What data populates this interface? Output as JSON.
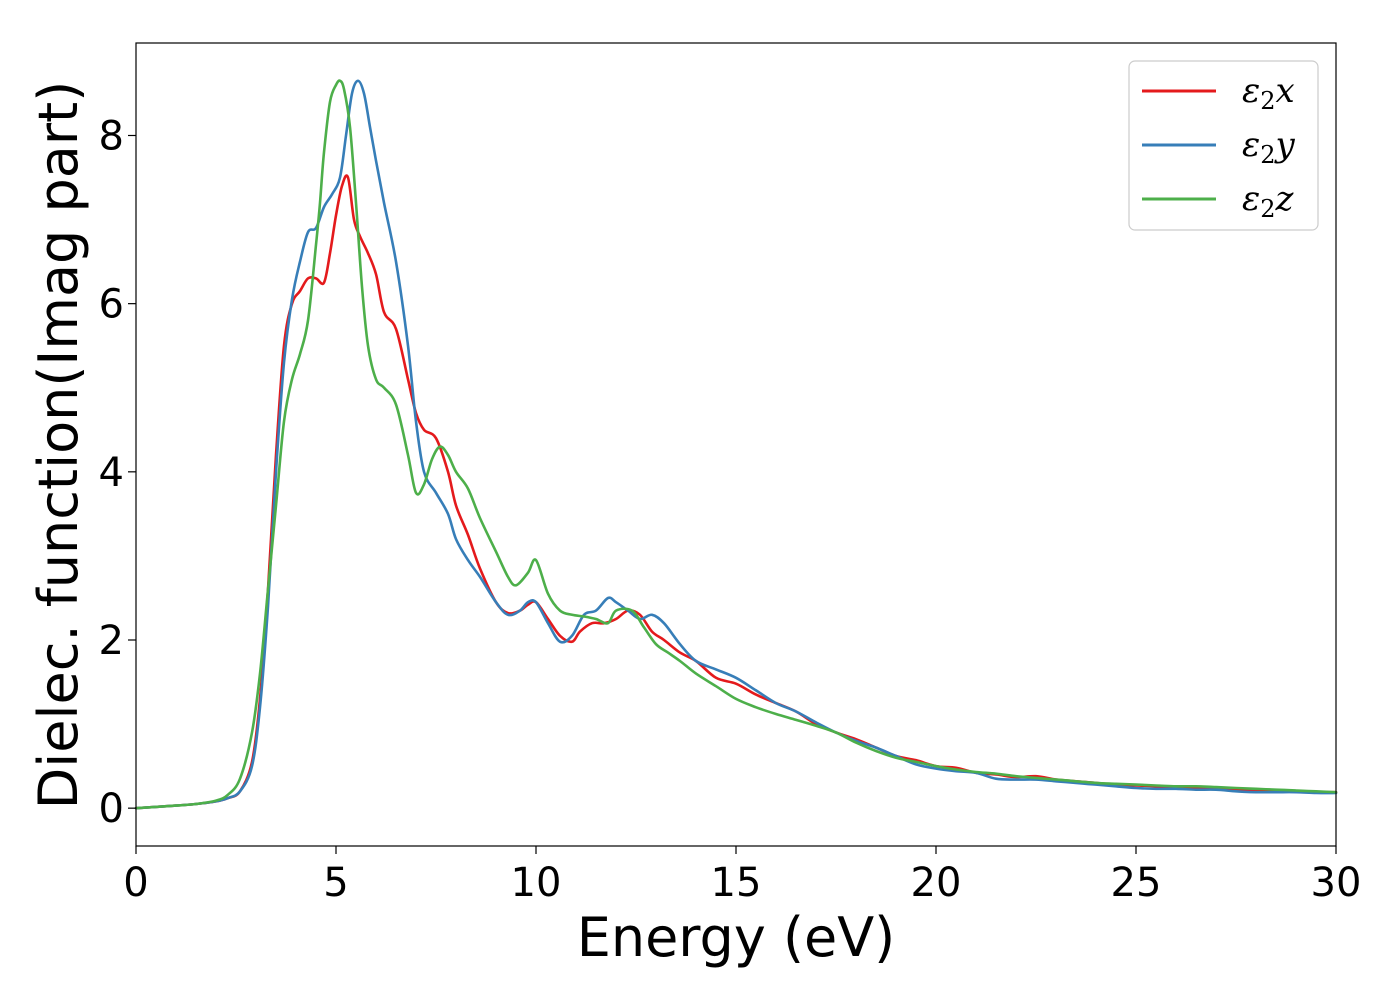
{
  "chart_data": {
    "type": "line",
    "title": "",
    "xlabel": "Energy (eV)",
    "ylabel": "Dielec. function(Imag part)",
    "xlim": [
      0,
      30
    ],
    "ylim": [
      -0.45,
      9.1
    ],
    "xticks": [
      0,
      5,
      10,
      15,
      20,
      25,
      30
    ],
    "xtick_labels": [
      "0",
      "5",
      "10",
      "15",
      "20",
      "25",
      "30"
    ],
    "yticks": [
      0,
      2,
      4,
      6,
      8
    ],
    "ytick_labels": [
      "0",
      "2",
      "4",
      "6",
      "8"
    ],
    "grid": false,
    "legend_position": "top-right",
    "series": [
      {
        "name": "ε2x",
        "legend": {
          "symbol": "ε",
          "sub": "2",
          "axis": "x"
        },
        "color": "#e41a1c",
        "x": [
          0,
          1,
          1.5,
          2,
          2.3,
          2.6,
          2.9,
          3.1,
          3.3,
          3.5,
          3.7,
          3.9,
          4.1,
          4.3,
          4.5,
          4.7,
          4.85,
          5.0,
          5.15,
          5.3,
          5.45,
          5.6,
          5.8,
          6.0,
          6.2,
          6.5,
          6.8,
          7.0,
          7.2,
          7.5,
          7.8,
          8.0,
          8.3,
          8.6,
          9.0,
          9.3,
          9.6,
          9.8,
          10.0,
          10.3,
          10.6,
          10.9,
          11.1,
          11.4,
          11.7,
          12.0,
          12.3,
          12.6,
          12.9,
          13.2,
          13.6,
          14.0,
          14.5,
          15.0,
          15.5,
          16.0,
          16.5,
          17.0,
          17.5,
          18.0,
          18.5,
          19.0,
          19.5,
          20.0,
          20.5,
          21.0,
          21.5,
          22.0,
          22.5,
          23.0,
          23.5,
          24.0,
          24.5,
          25.0,
          25.5,
          26.0,
          26.5,
          27.0,
          27.5,
          28.0,
          28.5,
          29.0,
          29.5,
          30.0
        ],
        "y": [
          0,
          0.03,
          0.05,
          0.08,
          0.12,
          0.2,
          0.55,
          1.3,
          2.6,
          4.2,
          5.5,
          6.0,
          6.15,
          6.3,
          6.3,
          6.25,
          6.6,
          7.05,
          7.4,
          7.5,
          7.0,
          6.8,
          6.6,
          6.35,
          5.9,
          5.7,
          5.1,
          4.7,
          4.5,
          4.4,
          4.0,
          3.6,
          3.25,
          2.85,
          2.45,
          2.32,
          2.35,
          2.42,
          2.45,
          2.25,
          2.05,
          1.98,
          2.1,
          2.2,
          2.2,
          2.25,
          2.35,
          2.3,
          2.1,
          2.0,
          1.85,
          1.75,
          1.55,
          1.48,
          1.35,
          1.25,
          1.15,
          1.0,
          0.9,
          0.82,
          0.72,
          0.62,
          0.57,
          0.5,
          0.48,
          0.42,
          0.4,
          0.37,
          0.38,
          0.34,
          0.32,
          0.3,
          0.28,
          0.27,
          0.26,
          0.25,
          0.24,
          0.23,
          0.22,
          0.21,
          0.2,
          0.2,
          0.19,
          0.19
        ]
      },
      {
        "name": "ε2y",
        "legend": {
          "symbol": "ε",
          "sub": "2",
          "axis": "y"
        },
        "color": "#377eb8",
        "x": [
          0,
          1,
          1.5,
          2,
          2.3,
          2.6,
          2.9,
          3.1,
          3.3,
          3.5,
          3.7,
          3.9,
          4.1,
          4.3,
          4.5,
          4.7,
          4.9,
          5.1,
          5.25,
          5.4,
          5.55,
          5.7,
          5.85,
          6.0,
          6.2,
          6.5,
          6.8,
          7.0,
          7.2,
          7.5,
          7.8,
          8.0,
          8.3,
          8.6,
          9.0,
          9.3,
          9.6,
          9.8,
          10.0,
          10.3,
          10.6,
          10.9,
          11.2,
          11.5,
          11.8,
          12.0,
          12.3,
          12.6,
          12.9,
          13.2,
          13.6,
          14.0,
          14.5,
          15.0,
          15.5,
          16.0,
          16.5,
          17.0,
          17.5,
          18.0,
          18.5,
          19.0,
          19.5,
          20.0,
          20.5,
          21.0,
          21.5,
          22.0,
          22.5,
          23.0,
          23.5,
          24.0,
          24.5,
          25.0,
          25.5,
          26.0,
          26.5,
          27.0,
          27.5,
          28.0,
          28.5,
          29.0,
          29.5,
          30.0
        ],
        "y": [
          0,
          0.03,
          0.05,
          0.08,
          0.12,
          0.2,
          0.5,
          1.2,
          2.4,
          4.0,
          5.3,
          6.05,
          6.5,
          6.85,
          6.9,
          7.15,
          7.3,
          7.5,
          8.0,
          8.5,
          8.65,
          8.5,
          8.1,
          7.7,
          7.2,
          6.5,
          5.5,
          4.6,
          4.0,
          3.75,
          3.5,
          3.2,
          2.95,
          2.75,
          2.45,
          2.3,
          2.35,
          2.45,
          2.45,
          2.2,
          1.98,
          2.05,
          2.3,
          2.35,
          2.5,
          2.45,
          2.35,
          2.25,
          2.3,
          2.2,
          1.95,
          1.75,
          1.65,
          1.55,
          1.4,
          1.25,
          1.15,
          1.02,
          0.9,
          0.8,
          0.72,
          0.62,
          0.52,
          0.47,
          0.44,
          0.42,
          0.35,
          0.34,
          0.34,
          0.32,
          0.3,
          0.28,
          0.26,
          0.24,
          0.23,
          0.23,
          0.22,
          0.22,
          0.2,
          0.19,
          0.19,
          0.19,
          0.18,
          0.18
        ]
      },
      {
        "name": "ε2z",
        "legend": {
          "symbol": "ε",
          "sub": "2",
          "axis": "z"
        },
        "color": "#4daf4a",
        "x": [
          0,
          1,
          1.5,
          2,
          2.3,
          2.6,
          2.9,
          3.1,
          3.3,
          3.5,
          3.7,
          3.9,
          4.1,
          4.3,
          4.5,
          4.6,
          4.7,
          4.85,
          5.0,
          5.1,
          5.2,
          5.35,
          5.5,
          5.65,
          5.8,
          6.0,
          6.2,
          6.5,
          6.8,
          7.0,
          7.2,
          7.4,
          7.6,
          7.8,
          8.0,
          8.3,
          8.6,
          9.0,
          9.3,
          9.5,
          9.8,
          10.0,
          10.3,
          10.6,
          10.9,
          11.2,
          11.5,
          11.8,
          12.0,
          12.4,
          12.7,
          13.0,
          13.3,
          13.6,
          14.0,
          14.5,
          15.0,
          15.5,
          16.0,
          16.5,
          17.0,
          17.5,
          18.0,
          18.5,
          19.0,
          19.5,
          20.0,
          20.5,
          21.0,
          21.5,
          22.0,
          22.5,
          23.0,
          23.5,
          24.0,
          24.5,
          25.0,
          25.5,
          26.0,
          26.5,
          27.0,
          27.5,
          28.0,
          28.5,
          29.0,
          29.5,
          30.0
        ],
        "y": [
          0,
          0.03,
          0.05,
          0.09,
          0.16,
          0.35,
          0.9,
          1.6,
          2.6,
          3.6,
          4.6,
          5.1,
          5.4,
          5.8,
          6.7,
          7.2,
          7.8,
          8.4,
          8.6,
          8.65,
          8.55,
          8.1,
          7.2,
          6.2,
          5.5,
          5.1,
          5.0,
          4.8,
          4.2,
          3.75,
          3.85,
          4.15,
          4.3,
          4.2,
          4.0,
          3.8,
          3.45,
          3.05,
          2.75,
          2.65,
          2.8,
          2.95,
          2.55,
          2.35,
          2.3,
          2.28,
          2.25,
          2.2,
          2.35,
          2.35,
          2.15,
          1.95,
          1.85,
          1.75,
          1.6,
          1.45,
          1.3,
          1.2,
          1.12,
          1.05,
          0.98,
          0.9,
          0.78,
          0.68,
          0.6,
          0.55,
          0.5,
          0.46,
          0.43,
          0.41,
          0.38,
          0.36,
          0.34,
          0.32,
          0.3,
          0.29,
          0.28,
          0.27,
          0.26,
          0.26,
          0.25,
          0.24,
          0.23,
          0.22,
          0.21,
          0.2,
          0.19
        ]
      }
    ]
  }
}
